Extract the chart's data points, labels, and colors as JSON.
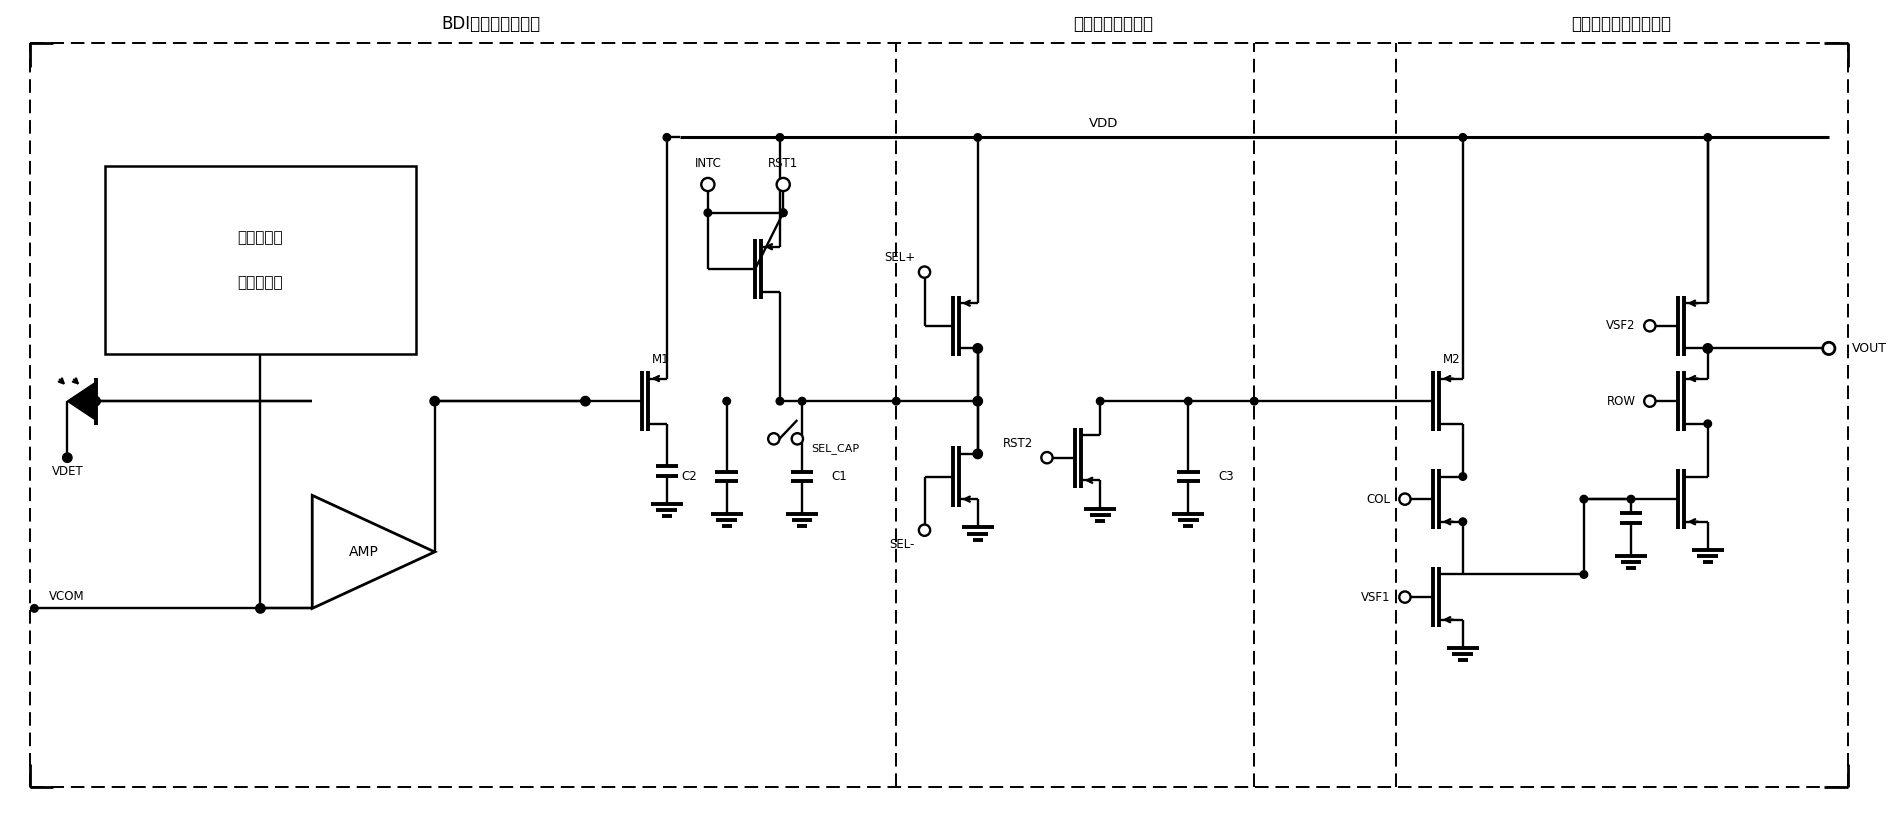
{
  "bg_color": "#ffffff",
  "line_color": "#000000",
  "label_bdi": "BDI前置输入级模块",
  "label_sample": "采样保持电路模块",
  "label_output": "两级源跟随输出级模块",
  "label_inner1": "两步背景抑",
  "label_inner2": "制电路模块",
  "label_AMP": "AMP",
  "label_VDET": "VDET",
  "label_VCOM": "VCOM",
  "label_VDD": "VDD",
  "label_M1": "M1",
  "label_M2": "M2",
  "label_INTC": "INTC",
  "label_RST1": "RST1",
  "label_RST2": "RST2",
  "label_SELp": "SEL+",
  "label_SELn": "SEL-",
  "label_SEL_CAP": "SEL_CAP",
  "label_C1": "C1",
  "label_C2": "C2",
  "label_C3": "C3",
  "label_VSF1": "VSF1",
  "label_VSF2": "VSF2",
  "label_ROW": "ROW",
  "label_COL": "COL",
  "label_VOUT": "VOUT",
  "figsize": [
    18.96,
    8.4
  ],
  "dpi": 100
}
